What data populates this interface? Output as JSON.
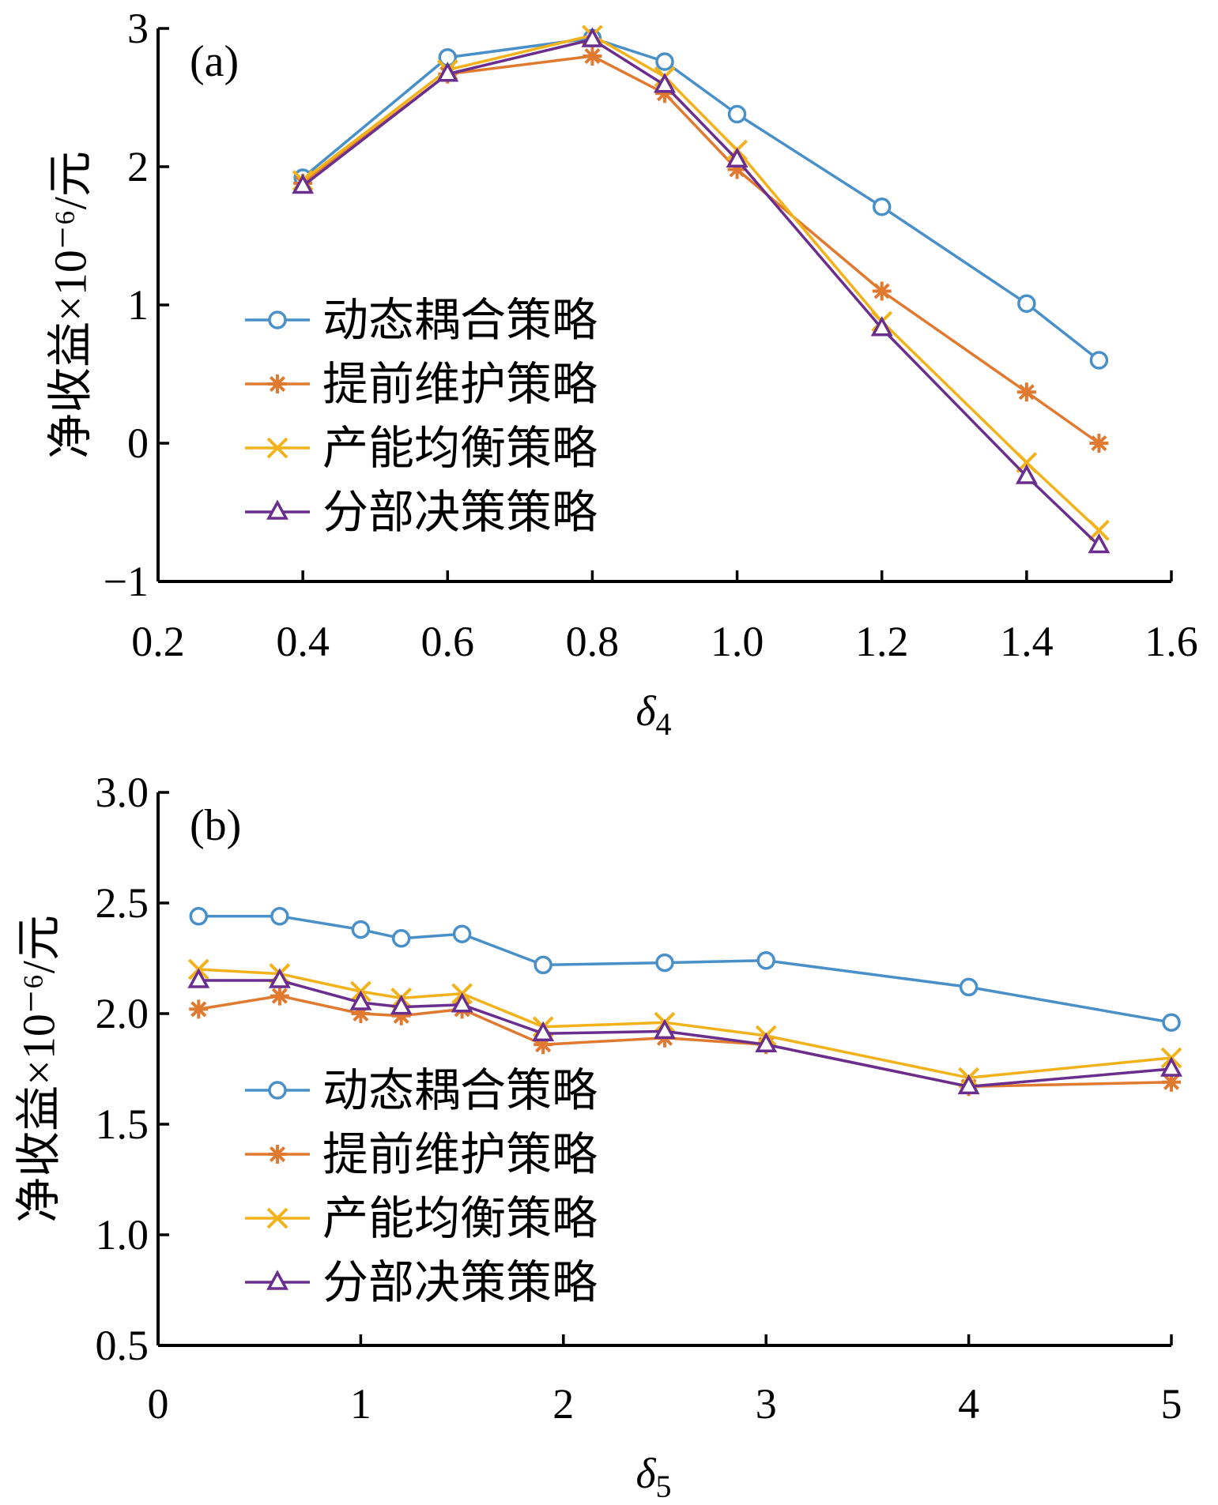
{
  "chart_data": [
    {
      "type": "line",
      "panel_label": "(a)",
      "xlabel": "δ",
      "xlabel_sub": "4",
      "ylabel": "净收益×10⁻⁶/元",
      "xlim": [
        0.2,
        1.6
      ],
      "ylim": [
        -1,
        3
      ],
      "xticks": [
        0.2,
        0.4,
        0.6,
        0.8,
        1.0,
        1.2,
        1.4,
        1.6
      ],
      "xtick_labels": [
        "0.2",
        "0.4",
        "0.6",
        "0.8",
        "1.0",
        "1.2",
        "1.4",
        "1.6"
      ],
      "yticks": [
        -1,
        0,
        1,
        2,
        3
      ],
      "ytick_labels": [
        "−1",
        "0",
        "1",
        "2",
        "3"
      ],
      "legend_position": "center-left",
      "grid": false,
      "x": [
        0.4,
        0.6,
        0.8,
        0.9,
        1.0,
        1.2,
        1.4,
        1.5
      ],
      "series": [
        {
          "name": "动态耦合策略",
          "color": "#4A90C8",
          "marker": "circle",
          "values": [
            1.92,
            2.79,
            2.93,
            2.76,
            2.38,
            1.71,
            1.01,
            0.6
          ]
        },
        {
          "name": "提前维护策略",
          "color": "#E07A30",
          "marker": "asterisk",
          "values": [
            1.88,
            2.67,
            2.8,
            2.53,
            1.98,
            1.1,
            0.37,
            0.0
          ]
        },
        {
          "name": "产能均衡策略",
          "color": "#F2B21B",
          "marker": "x",
          "values": [
            1.9,
            2.7,
            2.95,
            2.65,
            2.12,
            0.88,
            -0.14,
            -0.63
          ]
        },
        {
          "name": "分部决策策略",
          "color": "#6A2F8E",
          "marker": "triangle",
          "values": [
            1.86,
            2.67,
            2.92,
            2.59,
            2.05,
            0.83,
            -0.24,
            -0.74
          ]
        }
      ]
    },
    {
      "type": "line",
      "panel_label": "(b)",
      "xlabel": "δ",
      "xlabel_sub": "5",
      "ylabel": "净收益×10⁻⁶/元",
      "xlim": [
        0,
        5
      ],
      "ylim": [
        0.5,
        3.0
      ],
      "xticks": [
        0,
        1,
        2,
        3,
        4,
        5
      ],
      "xtick_labels": [
        "0",
        "1",
        "2",
        "3",
        "4",
        "5"
      ],
      "yticks": [
        0.5,
        1.0,
        1.5,
        2.0,
        2.5,
        3.0
      ],
      "ytick_labels": [
        "0.5",
        "1.0",
        "1.5",
        "2.0",
        "2.5",
        "3.0"
      ],
      "legend_position": "center-left",
      "grid": false,
      "x": [
        0.2,
        0.6,
        1.0,
        1.2,
        1.5,
        1.9,
        2.5,
        3.0,
        4.0,
        5.0
      ],
      "series": [
        {
          "name": "动态耦合策略",
          "color": "#4A90C8",
          "marker": "circle",
          "values": [
            2.44,
            2.44,
            2.38,
            2.34,
            2.36,
            2.22,
            2.23,
            2.24,
            2.12,
            1.96
          ]
        },
        {
          "name": "提前维护策略",
          "color": "#E07A30",
          "marker": "asterisk",
          "values": [
            2.02,
            2.08,
            2.0,
            1.99,
            2.02,
            1.86,
            1.89,
            1.86,
            1.67,
            1.69
          ]
        },
        {
          "name": "产能均衡策略",
          "color": "#F2B21B",
          "marker": "x",
          "values": [
            2.2,
            2.18,
            2.1,
            2.07,
            2.09,
            1.94,
            1.96,
            1.9,
            1.71,
            1.8
          ]
        },
        {
          "name": "分部决策策略",
          "color": "#6A2F8E",
          "marker": "triangle",
          "values": [
            2.15,
            2.15,
            2.05,
            2.03,
            2.04,
            1.91,
            1.92,
            1.86,
            1.67,
            1.75
          ]
        }
      ]
    }
  ]
}
